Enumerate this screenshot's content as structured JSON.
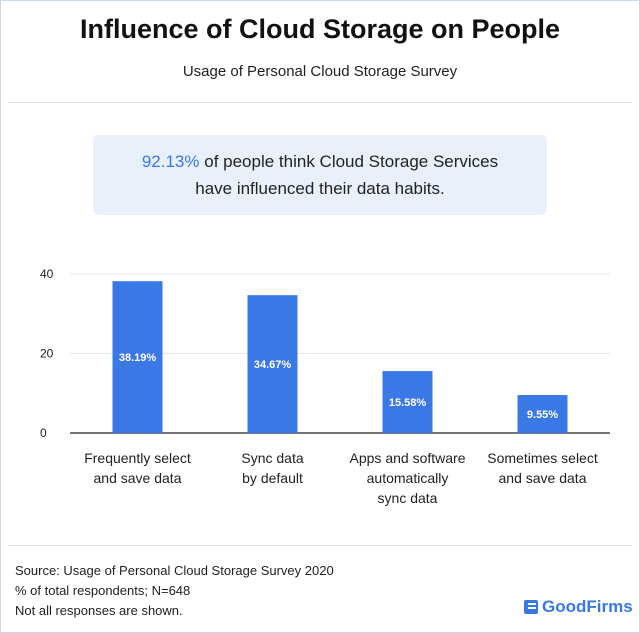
{
  "header": {
    "title": "Influence of Cloud Storage on People",
    "subtitle": "Usage of Personal Cloud Storage Survey"
  },
  "callout": {
    "highlight": "92.13%",
    "line1": " of people think Cloud Storage Services",
    "line2": "have influenced their data habits."
  },
  "chart_data": {
    "type": "bar",
    "categories": [
      [
        "Frequently select",
        "and save data"
      ],
      [
        "Sync data",
        "by default"
      ],
      [
        "Apps and software",
        "automatically",
        "sync data"
      ],
      [
        "Sometimes select",
        "and save data"
      ]
    ],
    "values": [
      38.19,
      34.67,
      15.58,
      9.55
    ],
    "value_labels": [
      "38.19%",
      "34.67%",
      "15.58%",
      "9.55%"
    ],
    "y_ticks": [
      0,
      20,
      40
    ],
    "ylim": [
      0,
      40
    ],
    "grid": true,
    "bar_color": "#3a78e6"
  },
  "footer": {
    "source": "Source: Usage of Personal Cloud Storage Survey 2020",
    "respondents": "% of total respondents; N=648",
    "note": "Not all responses are shown."
  },
  "brand": {
    "name": "GoodFirms"
  }
}
